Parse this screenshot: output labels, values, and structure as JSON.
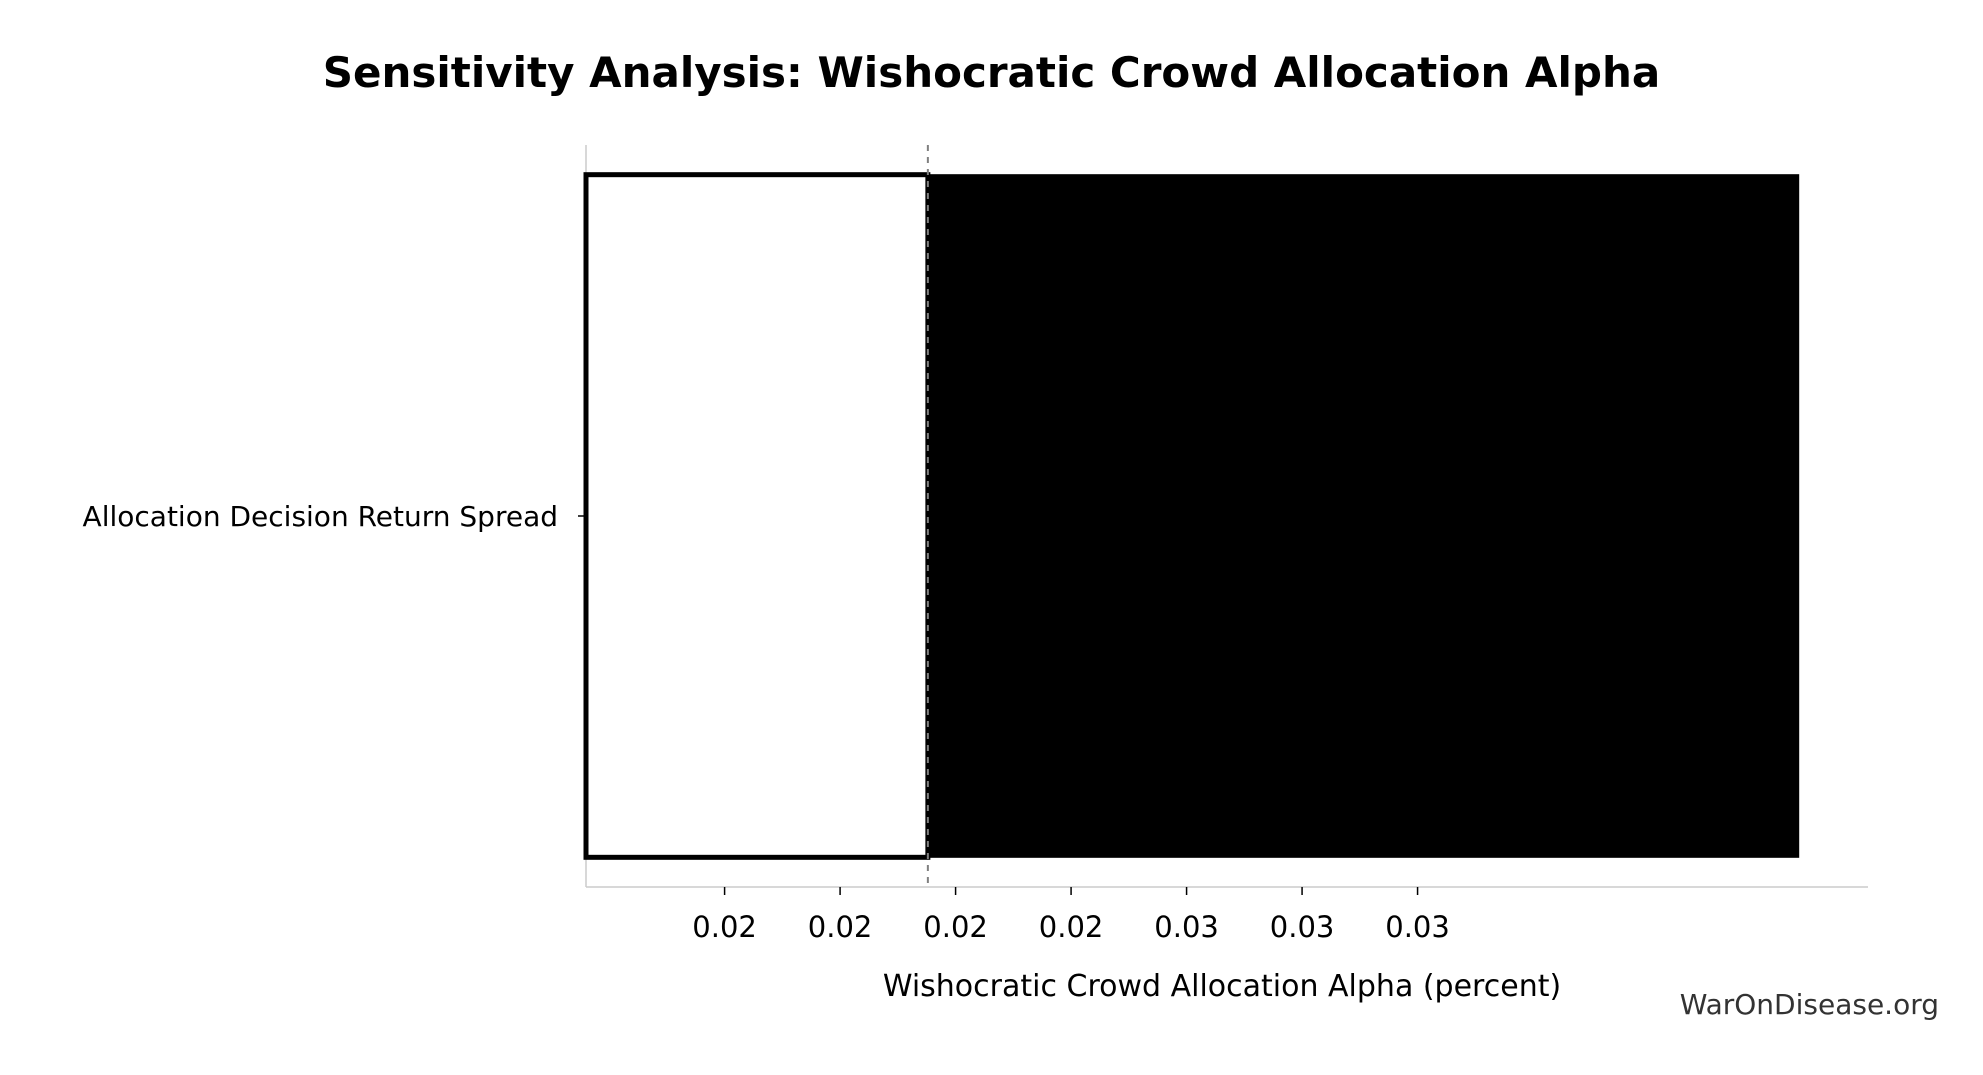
{
  "watermark": "WarOnDisease.org",
  "chart_data": {
    "type": "bar",
    "orientation": "horizontal",
    "title": "Sensitivity Analysis: Wishocratic Crowd Allocation Alpha",
    "xlabel": "Wishocratic Crowd Allocation Alpha (percent)",
    "ylabel": "",
    "categories": [
      "Allocation Decision Return Spread"
    ],
    "baseline": 0.02266,
    "low_values": [
      0.0197
    ],
    "high_values": [
      0.0302
    ],
    "xlim": [
      0.0197,
      0.0308
    ],
    "xticks": [
      0.0205,
      0.0215,
      0.0225,
      0.0235,
      0.0245,
      0.0255,
      0.0265,
      0.0275,
      0.0285,
      0.0295
    ],
    "xtick_labels": [
      "0.02",
      "0.02",
      "0.02",
      "0.02",
      "0.03",
      "0.03",
      "0.03"
    ],
    "xtick_values": [
      0.0209,
      0.0219,
      0.0229,
      0.0239,
      0.0249,
      0.0259,
      0.0269
    ],
    "low_color": "#ffffff",
    "high_color": "#000000",
    "baseline_color": "#808080",
    "grid": false,
    "legend": "none"
  }
}
